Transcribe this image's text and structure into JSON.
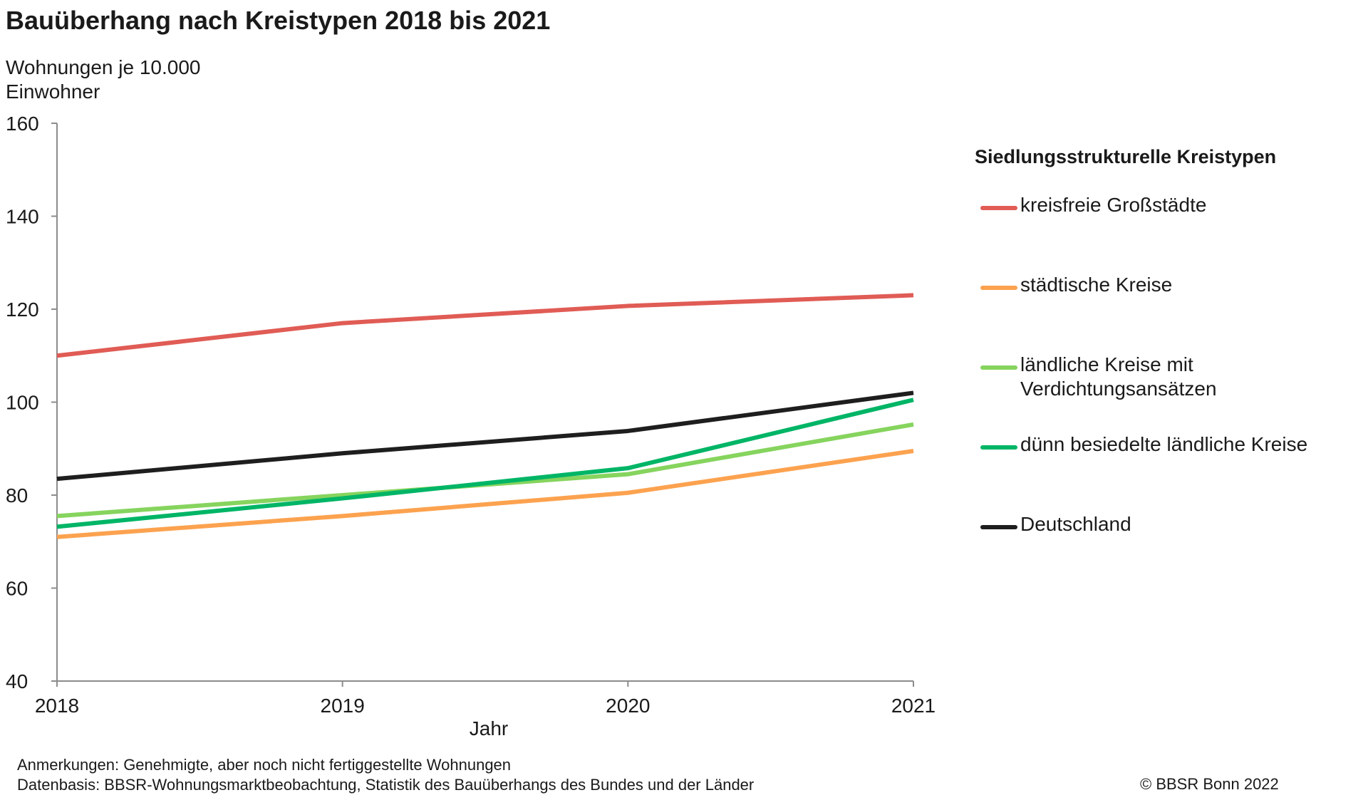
{
  "chart_data": {
    "type": "line",
    "title": "Bauüberhang nach Kreistypen 2018 bis 2021",
    "ylabel_lines": [
      "Wohnungen je 10.000",
      "Einwohner"
    ],
    "xlabel": "Jahr",
    "x": [
      "2018",
      "2019",
      "2020",
      "2021"
    ],
    "ylim": [
      40,
      160
    ],
    "yticks": [
      40,
      60,
      80,
      100,
      120,
      140,
      160
    ],
    "grid": false,
    "legend_position": "right",
    "legend_title": "Siedlungsstrukturelle Kreistypen",
    "series": [
      {
        "name": "kreisfreie Großstädte",
        "label_lines": [
          "kreisfreie Großstädte"
        ],
        "color": "#e05c55",
        "values": [
          110,
          117,
          120.7,
          123
        ]
      },
      {
        "name": "städtische Kreise",
        "label_lines": [
          "städtische Kreise"
        ],
        "color": "#fca24f",
        "values": [
          71,
          75.5,
          80.5,
          89.5
        ]
      },
      {
        "name": "ländliche Kreise mit Verdichtungsansätzen",
        "label_lines": [
          "ländliche Kreise mit",
          "Verdichtungsansätzen"
        ],
        "color": "#86d45e",
        "values": [
          75.5,
          80,
          84.5,
          95.2
        ]
      },
      {
        "name": "dünn besiedelte ländliche Kreise",
        "label_lines": [
          "dünn besiedelte ländliche Kreise"
        ],
        "color": "#00b566",
        "values": [
          73.2,
          79.3,
          85.8,
          100.5
        ]
      },
      {
        "name": "Deutschland",
        "label_lines": [
          "Deutschland"
        ],
        "color": "#1e1e1e",
        "values": [
          83.5,
          89,
          93.8,
          102
        ]
      }
    ]
  },
  "notes": {
    "line1": "Anmerkungen: Genehmigte, aber noch nicht fertiggestellte Wohnungen",
    "line2": "Datenbasis: BBSR-Wohnungsmarktbeobachtung, Statistik des Bauüberhangs des Bundes und der Länder"
  },
  "copyright": "© BBSR Bonn 2022"
}
